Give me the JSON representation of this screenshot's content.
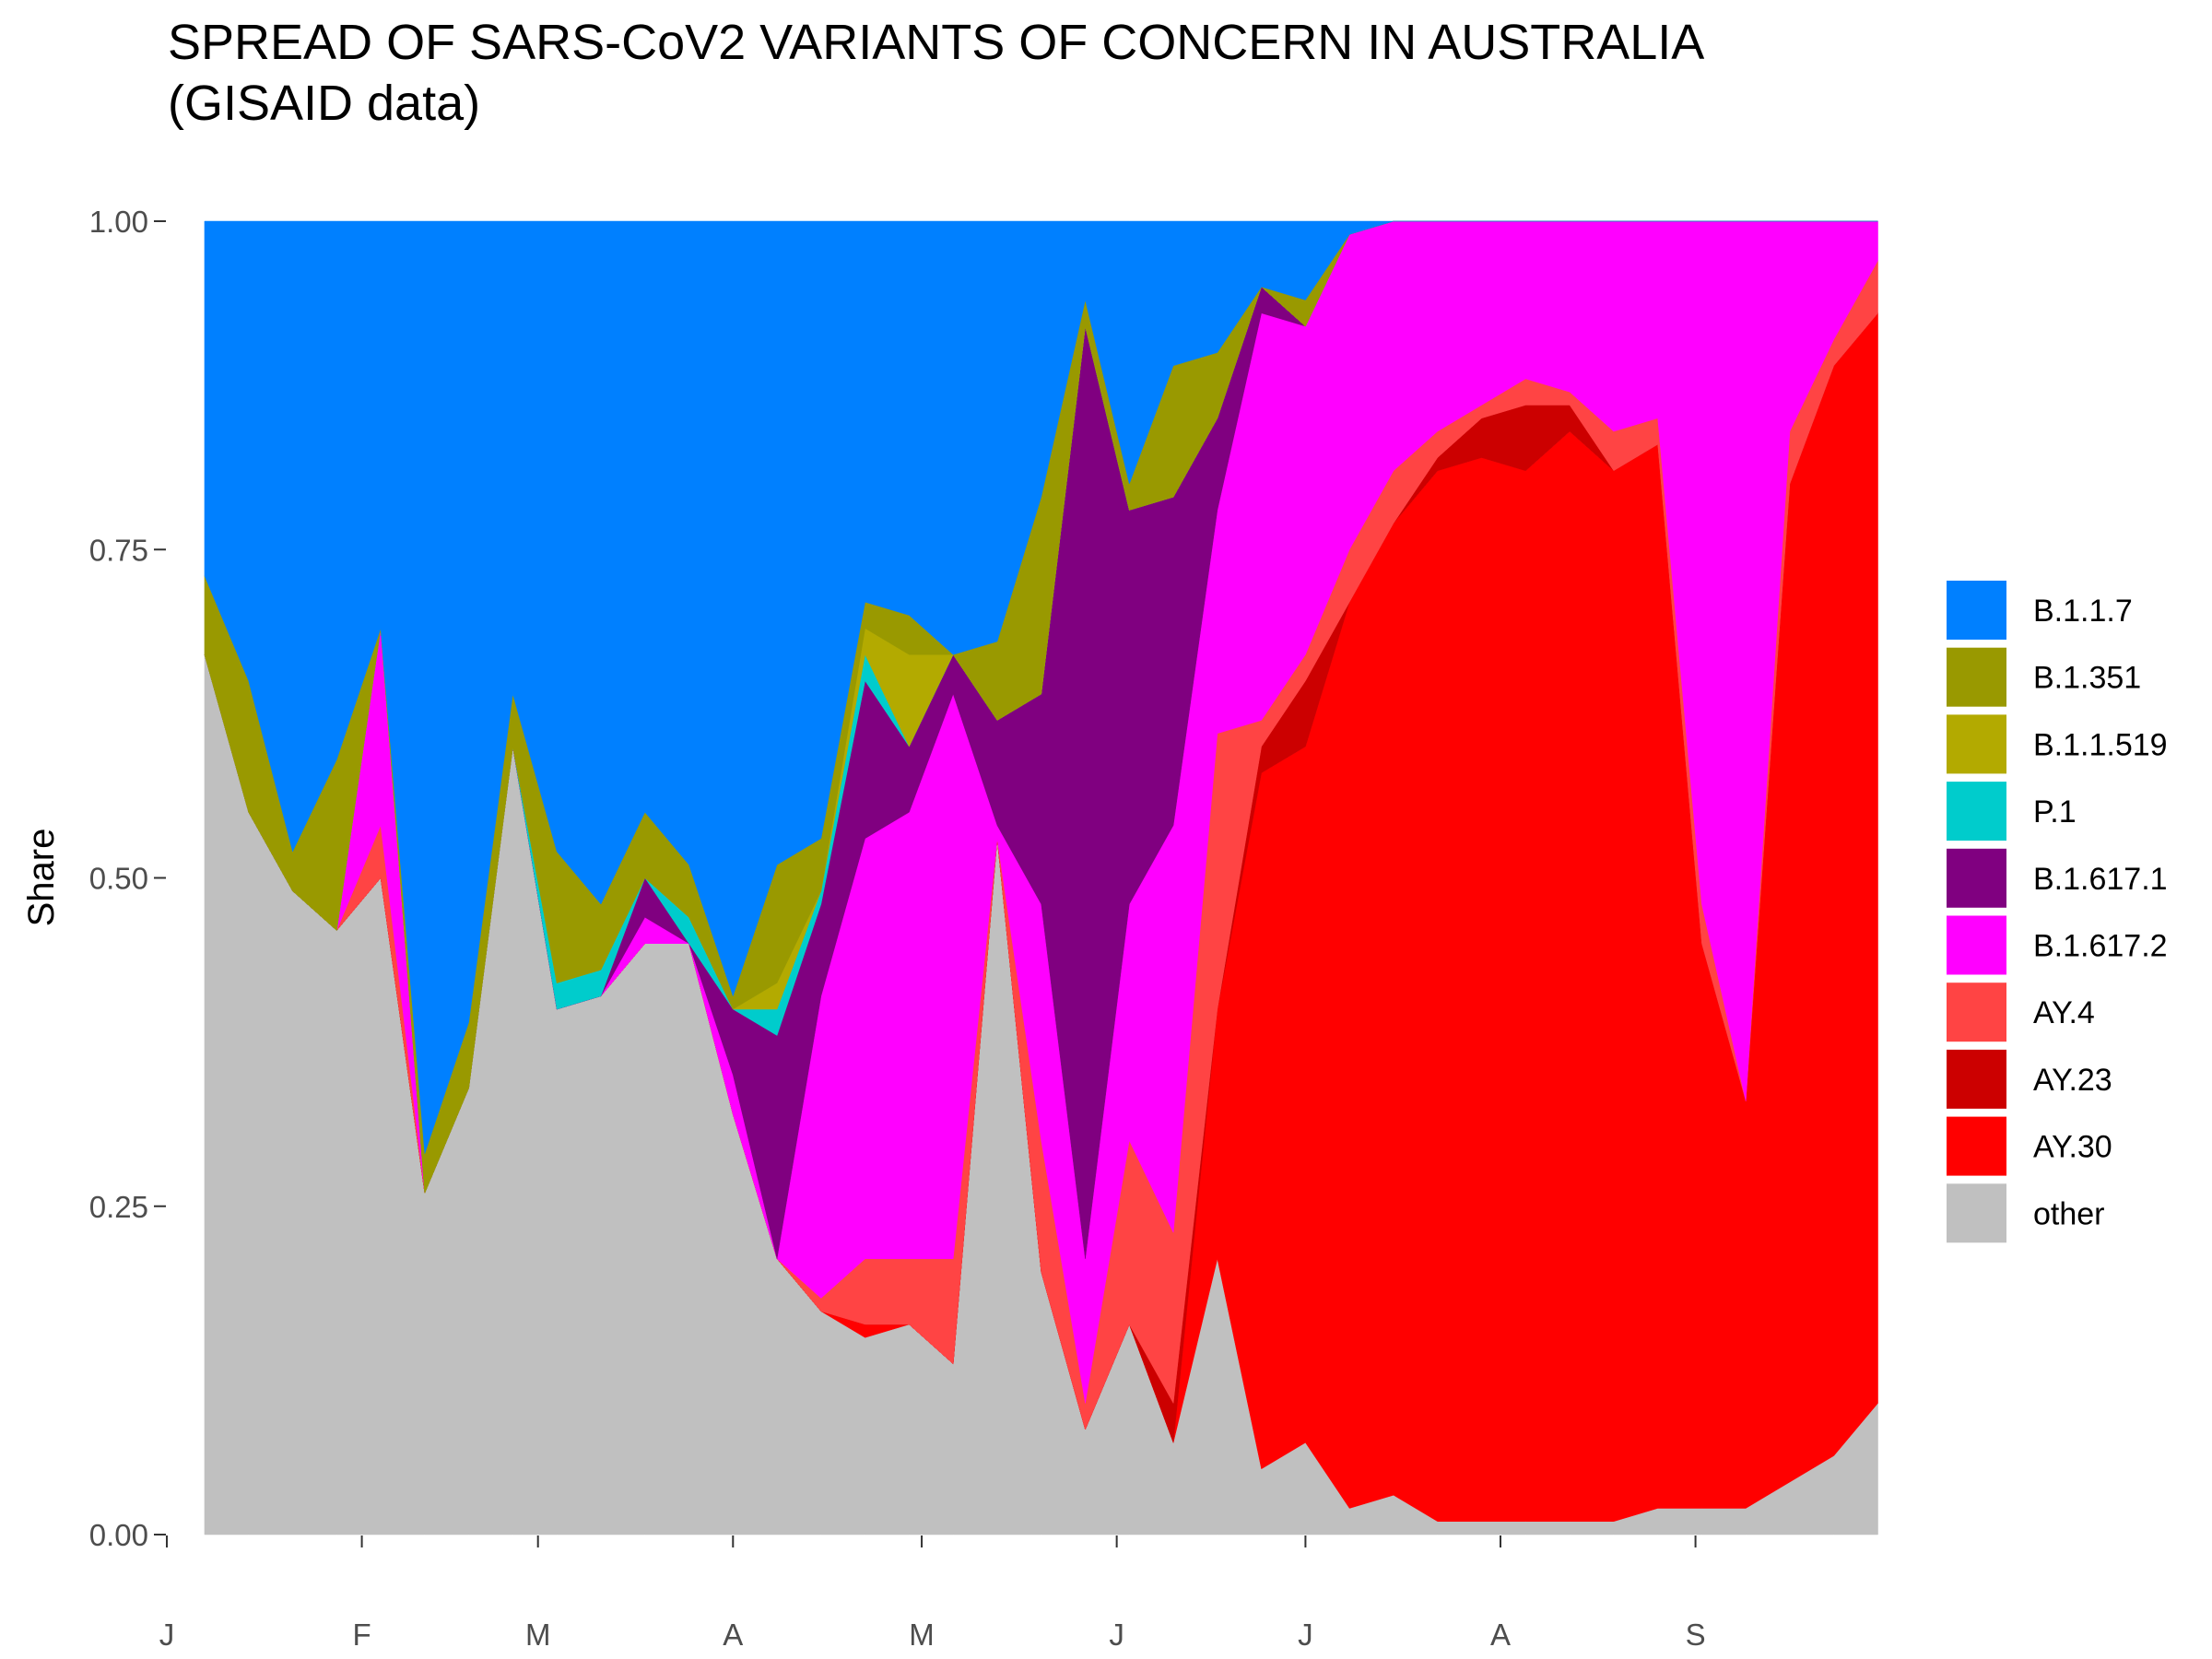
{
  "chart_data": {
    "type": "stacked_area",
    "title": [
      "SPREAD OF SARS-CoV2 VARIANTS OF CONCERN IN AUSTRALIA",
      "(GISAID data)"
    ],
    "ylabel": "Share",
    "x": [
      7,
      14,
      21,
      28,
      35,
      42,
      49,
      56,
      63,
      70,
      77,
      84,
      91,
      98,
      105,
      112,
      119,
      126,
      133,
      140,
      147,
      154,
      161,
      168,
      175,
      182,
      189,
      196,
      203,
      210,
      217,
      224,
      231,
      238,
      245,
      252,
      259,
      266,
      273
    ],
    "xlim": [
      1,
      276
    ],
    "xticks": [
      {
        "value": 1,
        "label": "J"
      },
      {
        "value": 32,
        "label": "F"
      },
      {
        "value": 60,
        "label": "M"
      },
      {
        "value": 91,
        "label": "A"
      },
      {
        "value": 121,
        "label": "M"
      },
      {
        "value": 152,
        "label": "J"
      },
      {
        "value": 182,
        "label": "J"
      },
      {
        "value": 213,
        "label": "A"
      },
      {
        "value": 244,
        "label": "S"
      }
    ],
    "ylim": [
      0,
      1
    ],
    "yticks": [
      {
        "value": 0,
        "label": "0.00"
      },
      {
        "value": 0.25,
        "label": "0.25"
      },
      {
        "value": 0.5,
        "label": "0.50"
      },
      {
        "value": 0.75,
        "label": "0.75"
      },
      {
        "value": 1,
        "label": "1.00"
      }
    ],
    "legend": "right",
    "series": [
      {
        "name": "B.1.1.7",
        "color": "#0080ff",
        "values": [
          0.27,
          0.35,
          0.48,
          0.41,
          0.31,
          0.71,
          0.61,
          0.36,
          0.48,
          0.52,
          0.45,
          0.49,
          0.59,
          0.49,
          0.47,
          0.29,
          0.3,
          0.33,
          0.32,
          0.21,
          0.06,
          0.2,
          0.11,
          0.1,
          0.05,
          0.06,
          0.01,
          0,
          0,
          0,
          0,
          0,
          0,
          0,
          0,
          0,
          0,
          0,
          0
        ]
      },
      {
        "name": "B.1.351",
        "color": "#999900",
        "values": [
          0.06,
          0.1,
          0.03,
          0.13,
          0,
          0.03,
          0.05,
          0.04,
          0.1,
          0.05,
          0.05,
          0.04,
          0.01,
          0.09,
          0.04,
          0.02,
          0.03,
          0,
          0.06,
          0.15,
          0.02,
          0.02,
          0.1,
          0.05,
          0,
          0.02,
          0,
          0,
          0,
          0,
          0,
          0,
          0,
          0,
          0,
          0,
          0,
          0,
          0
        ]
      },
      {
        "name": "B.1.1.519",
        "color": "#b3aa00",
        "values": [
          0,
          0,
          0,
          0,
          0,
          0,
          0,
          0,
          0,
          0,
          0,
          0,
          0,
          0.02,
          0,
          0.02,
          0.07,
          0,
          0,
          0,
          0,
          0,
          0,
          0,
          0,
          0,
          0,
          0,
          0,
          0,
          0,
          0,
          0,
          0,
          0,
          0,
          0,
          0,
          0
        ]
      },
      {
        "name": "P.1",
        "color": "#00cccc",
        "values": [
          0,
          0,
          0,
          0,
          0,
          0,
          0,
          0,
          0.02,
          0.02,
          0,
          0.02,
          0,
          0.02,
          0.01,
          0.02,
          0,
          0,
          0,
          0,
          0,
          0,
          0,
          0,
          0,
          0,
          0,
          0,
          0,
          0,
          0,
          0,
          0,
          0,
          0,
          0,
          0,
          0,
          0
        ]
      },
      {
        "name": "B.1.617.1",
        "color": "#800080",
        "values": [
          0,
          0,
          0,
          0,
          0,
          0,
          0,
          0,
          0,
          0,
          0.03,
          0,
          0.05,
          0.17,
          0.07,
          0.12,
          0.05,
          0.03,
          0.08,
          0.16,
          0.71,
          0.3,
          0.25,
          0.07,
          0.02,
          0,
          0,
          0,
          0,
          0,
          0,
          0,
          0,
          0,
          0,
          0,
          0,
          0,
          0
        ]
      },
      {
        "name": "B.1.617.2",
        "color": "#ff00ff",
        "values": [
          0,
          0,
          0,
          0,
          0.15,
          0,
          0,
          0,
          0,
          0,
          0.02,
          0,
          0.03,
          0,
          0.23,
          0.32,
          0.34,
          0.43,
          0.01,
          0.18,
          0.11,
          0.18,
          0.31,
          0.17,
          0.31,
          0.25,
          0.24,
          0.19,
          0.16,
          0.14,
          0.12,
          0.13,
          0.16,
          0.15,
          0.52,
          0.67,
          0.16,
          0.09,
          0.03
        ]
      },
      {
        "name": "AY.4",
        "color": "#ff4444",
        "values": [
          0,
          0,
          0,
          0,
          0.04,
          0,
          0,
          0,
          0,
          0,
          0,
          0,
          0,
          0,
          0.01,
          0.05,
          0.05,
          0.08,
          0,
          0.1,
          0.02,
          0.14,
          0.13,
          0.21,
          0.02,
          0.02,
          0.04,
          0.04,
          0.02,
          0.01,
          0.02,
          0.01,
          0.03,
          0.02,
          0.03,
          0,
          0.04,
          0.02,
          0.04
        ]
      },
      {
        "name": "AY.23",
        "color": "#cc0000",
        "values": [
          0,
          0,
          0,
          0,
          0,
          0,
          0,
          0,
          0,
          0,
          0,
          0,
          0,
          0,
          0,
          0,
          0,
          0,
          0,
          0,
          0,
          0,
          0.03,
          0,
          0.02,
          0.05,
          0,
          0,
          0.01,
          0.03,
          0.05,
          0.02,
          0,
          0,
          0,
          0,
          0,
          0,
          0
        ]
      },
      {
        "name": "AY.30",
        "color": "#ff0000",
        "values": [
          0,
          0,
          0,
          0,
          0,
          0,
          0,
          0,
          0,
          0,
          0,
          0,
          0,
          0,
          0,
          0.01,
          0,
          0,
          0,
          0,
          0,
          0,
          0,
          0.19,
          0.53,
          0.53,
          0.69,
          0.74,
          0.8,
          0.81,
          0.8,
          0.83,
          0.8,
          0.81,
          0.43,
          0.31,
          0.76,
          0.83,
          0.83
        ]
      },
      {
        "name": "other",
        "color": "#c0c0c0",
        "values": [
          0.67,
          0.55,
          0.49,
          0.46,
          0.5,
          0.26,
          0.34,
          0.6,
          0.4,
          0.41,
          0.45,
          0.45,
          0.32,
          0.21,
          0.17,
          0.15,
          0.16,
          0.13,
          0.53,
          0.2,
          0.08,
          0.16,
          0.07,
          0.21,
          0.05,
          0.07,
          0.02,
          0.03,
          0.01,
          0.01,
          0.01,
          0.01,
          0.01,
          0.02,
          0.02,
          0.02,
          0.04,
          0.06,
          0.1
        ]
      }
    ]
  }
}
